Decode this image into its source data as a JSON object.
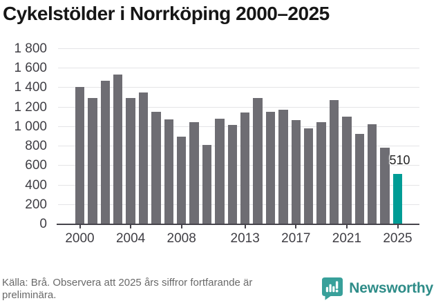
{
  "title": "Cykelstölder i Norrköping 2000–2025",
  "chart_data": {
    "type": "bar",
    "title": "Cykelstölder i Norrköping 2000–2025",
    "categories": [
      2000,
      2001,
      2002,
      2003,
      2004,
      2005,
      2006,
      2007,
      2008,
      2009,
      2010,
      2011,
      2012,
      2013,
      2014,
      2015,
      2016,
      2017,
      2018,
      2019,
      2020,
      2021,
      2022,
      2023,
      2024,
      2025
    ],
    "values": [
      1400,
      1290,
      1470,
      1530,
      1290,
      1350,
      1150,
      1070,
      890,
      1040,
      810,
      1080,
      1010,
      1140,
      1290,
      1150,
      1170,
      1060,
      980,
      1040,
      1270,
      1100,
      920,
      1020,
      780,
      510
    ],
    "highlight_year": 2025,
    "highlight_value_label": "510",
    "ylim": [
      0,
      1800
    ],
    "yticks": [
      0,
      200,
      400,
      600,
      800,
      1000,
      1200,
      1400,
      1600,
      1800
    ],
    "ytick_labels": [
      "0",
      "200",
      "400",
      "600",
      "800",
      "1 000",
      "1 200",
      "1 400",
      "1 600",
      "1 800"
    ],
    "xtick_years": [
      2000,
      2004,
      2008,
      2013,
      2017,
      2021,
      2025
    ],
    "grid": "horizontal",
    "legend": "none",
    "colors": {
      "bar": "#6e6d73",
      "highlight": "#009c95",
      "gridline": "#e4e4e6",
      "axis": "#45434a",
      "tick_text": "#3f3e44"
    }
  },
  "footer": {
    "source": "Källa: Brå. Observera att 2025 års siffror fortfarande är preliminära.",
    "brand": "Newsworthy"
  }
}
